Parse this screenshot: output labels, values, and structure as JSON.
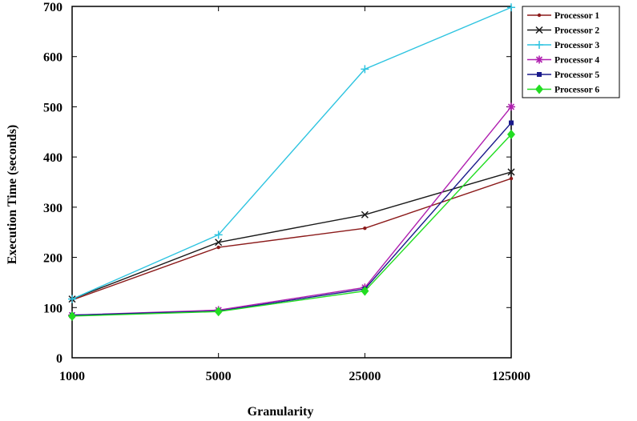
{
  "chart_data": {
    "type": "line",
    "x_scale": "log",
    "categories": [
      "1000",
      "5000",
      "25000",
      "125000"
    ],
    "xlabel": "Granularity",
    "ylabel": "Execution Time (seconds)",
    "ylim": [
      0,
      700
    ],
    "yticks": [
      "0",
      "100",
      "200",
      "300",
      "400",
      "500",
      "600",
      "700"
    ],
    "grid": false,
    "legend_position": "top-right",
    "series": [
      {
        "name": "Processor 1",
        "color": "#8b1a1a",
        "marker": "dot",
        "values": [
          115,
          220,
          258,
          357
        ]
      },
      {
        "name": "Processor 2",
        "color": "#1a1a1a",
        "marker": "x",
        "values": [
          117,
          230,
          285,
          370
        ]
      },
      {
        "name": "Processor 3",
        "color": "#2ec4e0",
        "marker": "plus",
        "values": [
          117,
          245,
          575,
          698
        ]
      },
      {
        "name": "Processor 4",
        "color": "#b020b0",
        "marker": "star",
        "values": [
          85,
          95,
          140,
          500
        ]
      },
      {
        "name": "Processor 5",
        "color": "#1a1a8b",
        "marker": "square",
        "values": [
          85,
          93,
          137,
          468
        ]
      },
      {
        "name": "Processor 6",
        "color": "#22dd22",
        "marker": "diamond",
        "values": [
          83,
          92,
          133,
          445
        ]
      }
    ]
  }
}
